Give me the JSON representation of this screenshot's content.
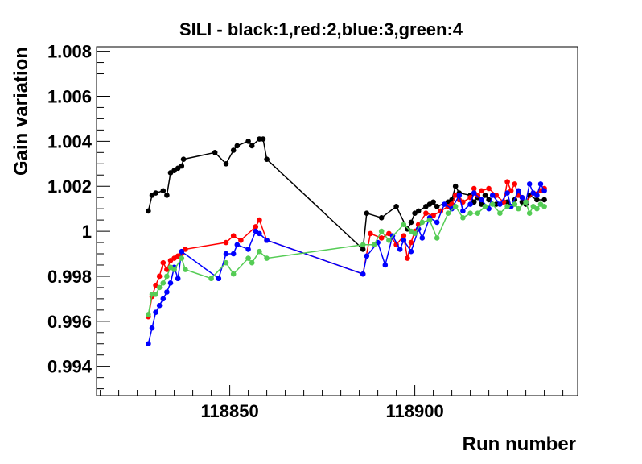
{
  "chart_data": {
    "type": "line",
    "title": "SILI - black:1,red:2,blue:3,green:4",
    "xlabel": "Run number",
    "ylabel": "Gain variation",
    "xlim": [
      118814,
      118944
    ],
    "ylim": [
      0.9927,
      1.0082
    ],
    "grid": false,
    "x_ticks": [
      118850,
      118900
    ],
    "x_tick_labels": [
      "118850",
      "118900"
    ],
    "y_ticks": [
      0.994,
      0.996,
      0.998,
      1.0,
      1.002,
      1.004,
      1.006,
      1.008
    ],
    "y_tick_labels": [
      "0.994",
      "0.996",
      "0.998",
      "1",
      "1.002",
      "1.004",
      "1.006",
      "1.008"
    ],
    "series": [
      {
        "color": "#000000",
        "x": [
          118828,
          118829,
          118830,
          118832,
          118833,
          118834,
          118835,
          118836,
          118837,
          118837.5,
          118846,
          118849,
          118851,
          118852,
          118855,
          118856,
          118858,
          118859,
          118860,
          118886,
          118887,
          118891,
          118895,
          118898,
          118899,
          118900,
          118901,
          118903,
          118904,
          118905,
          118906,
          118909,
          118910,
          118911,
          118912,
          118915,
          118916,
          118917,
          118918,
          118919,
          118920,
          118922,
          118925,
          118926,
          118927,
          118928,
          118929,
          118930,
          118931,
          118933,
          118935
        ],
        "y": [
          1.0009,
          1.0016,
          1.0017,
          1.0018,
          1.0016,
          1.0026,
          1.0027,
          1.0028,
          1.0029,
          1.0032,
          1.0035,
          1.003,
          1.0036,
          1.0038,
          1.004,
          1.0038,
          1.0041,
          1.0041,
          1.0032,
          0.9992,
          1.0008,
          1.0006,
          1.0011,
          1.0001,
          1.0004,
          1.0008,
          1.0009,
          1.0011,
          1.0012,
          1.0013,
          1.0011,
          1.0013,
          1.0014,
          1.002,
          1.0017,
          1.0016,
          1.0013,
          1.0015,
          1.0012,
          1.0016,
          1.0014,
          1.0012,
          1.0013,
          1.0011,
          1.0014,
          1.0017,
          1.0013,
          1.0012,
          1.0016,
          1.0014,
          1.0014
        ]
      },
      {
        "color": "#ff0000",
        "x": [
          118828,
          118829,
          118830,
          118831,
          118832,
          118833,
          118834,
          118835,
          118836,
          118837,
          118838,
          118849,
          118851,
          118853,
          118857,
          118858,
          118860,
          118886,
          118888,
          118891,
          118893,
          118895,
          118897,
          118898,
          118899,
          118900,
          118901,
          118903,
          118905,
          118907,
          118909,
          118910,
          118911,
          118912,
          118913,
          118915,
          118916,
          118917,
          118918,
          118920,
          118922,
          118924,
          118925,
          118926,
          118927,
          118928,
          118929,
          118930,
          118932,
          118934,
          118935
        ],
        "y": [
          0.9962,
          0.9971,
          0.9976,
          0.998,
          0.9986,
          0.9983,
          0.9987,
          0.9988,
          0.9989,
          0.999,
          0.9992,
          0.9995,
          0.9998,
          0.9996,
          1.0002,
          1.0005,
          0.9996,
          0.9981,
          0.9999,
          0.9997,
          0.9999,
          0.9994,
          0.9998,
          0.9988,
          0.9995,
          1.0,
          1.0003,
          1.0008,
          1.0007,
          1.0009,
          1.0011,
          1.0012,
          1.0016,
          1.0014,
          1.0013,
          1.0015,
          1.0019,
          1.0016,
          1.0018,
          1.0019,
          1.0016,
          1.0013,
          1.0022,
          1.0018,
          1.0021,
          1.0016,
          1.0015,
          1.0013,
          1.0017,
          1.0018,
          1.0019
        ]
      },
      {
        "color": "#0000ff",
        "x": [
          118828,
          118829,
          118830,
          118831,
          118832,
          118833,
          118834,
          118835,
          118836,
          118837,
          118847,
          118849,
          118851,
          118852,
          118855,
          118857,
          118858,
          118860,
          118886,
          118887,
          118890,
          118892,
          118894,
          118896,
          118897,
          118899,
          118901,
          118902,
          118904,
          118906,
          118908,
          118910,
          118912,
          118913,
          118915,
          118916,
          118918,
          118920,
          118921,
          118923,
          118925,
          118926,
          118928,
          118929,
          118930,
          118931,
          118932,
          118933,
          118934,
          118935
        ],
        "y": [
          0.995,
          0.9957,
          0.9964,
          0.9967,
          0.997,
          0.9973,
          0.9977,
          0.9984,
          0.9979,
          0.9991,
          0.9979,
          0.999,
          0.999,
          0.9994,
          0.9992,
          1.0,
          0.9999,
          0.9996,
          0.9981,
          0.9989,
          0.9995,
          0.9985,
          0.9998,
          0.9992,
          0.9996,
          0.9991,
          1.0001,
          0.9997,
          1.0006,
          1.0004,
          1.0012,
          1.001,
          1.0016,
          1.0009,
          1.0012,
          1.0017,
          1.0014,
          1.001,
          1.0016,
          1.0012,
          1.0017,
          1.0011,
          1.0018,
          1.0015,
          1.0013,
          1.0021,
          1.0017,
          1.0016,
          1.0021,
          1.0018
        ]
      },
      {
        "color": "#55cc55",
        "x": [
          118828,
          118829,
          118830,
          118831,
          118832,
          118833,
          118834,
          118835,
          118837,
          118838,
          118845,
          118849,
          118851,
          118855,
          118856,
          118858,
          118860,
          118886,
          118889,
          118891,
          118893,
          118897,
          118899,
          118900,
          118902,
          118904,
          118906,
          118909,
          118911,
          118913,
          118915,
          118917,
          118919,
          118921,
          118923,
          118925,
          118927,
          118928,
          118930,
          118931,
          118932,
          118933,
          118934,
          118935
        ],
        "y": [
          0.9963,
          0.9972,
          0.9972,
          0.9975,
          0.9977,
          0.998,
          0.9984,
          0.9983,
          0.9988,
          0.9983,
          0.9979,
          0.9986,
          0.9981,
          0.9988,
          0.9986,
          0.9991,
          0.9988,
          0.9994,
          0.9994,
          1.0,
          0.9996,
          1.0003,
          1.0,
          0.9999,
          1.0004,
          1.0005,
          0.9997,
          1.0008,
          1.0011,
          1.0006,
          1.0008,
          1.0008,
          1.0011,
          1.0012,
          1.0008,
          1.0011,
          1.0012,
          1.001,
          1.0013,
          1.0008,
          1.0011,
          1.001,
          1.0012,
          1.0011
        ]
      }
    ]
  }
}
